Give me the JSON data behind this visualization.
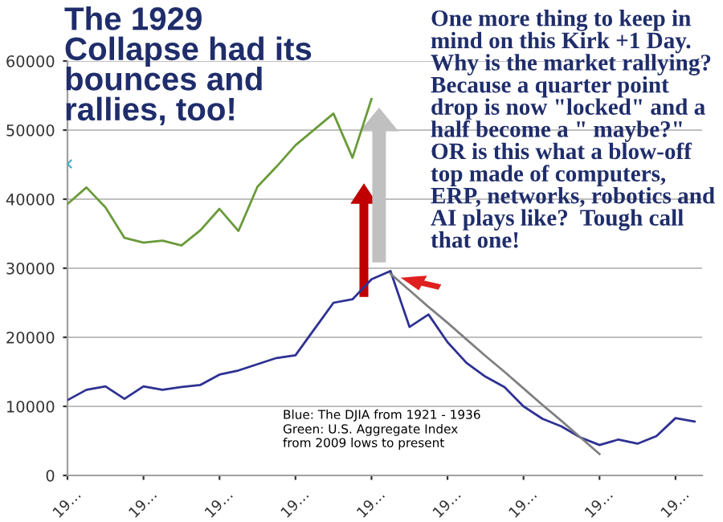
{
  "chart_data": {
    "type": "line",
    "title": "The 1929 Collapse had its bounces and rallies, too!",
    "annotations": [
      "One more thing to keep in mind on this Kirk +1 Day.  Why is the market rallying?  Because a quarter point drop is now \"locked\" and a half become a \" maybe?\"  OR is this what a blow-off top made of computers, ERP, networks, robotics and AI plays like?  Tough call that one!",
      "Blue: The DJIA from 1921 - 1936",
      "Green: U.S. Aggregate Index from 2009 lows to present"
    ],
    "categories": [
      "19…",
      null,
      null,
      null,
      "19…",
      null,
      null,
      null,
      "19…",
      null,
      null,
      null,
      "19…",
      null,
      null,
      null,
      "19…",
      null,
      null,
      null,
      "19…",
      null,
      null,
      null,
      "19…",
      null,
      null,
      null,
      "19…",
      null,
      null,
      null,
      "19…",
      null
    ],
    "series": [
      {
        "color": "#2e3192",
        "values": [
          10900,
          12400,
          12900,
          11100,
          12900,
          12400,
          12800,
          13100,
          14600,
          15200,
          16100,
          17000,
          17400,
          21200,
          25000,
          25500,
          28400,
          29600,
          21500,
          23300,
          19300,
          16300,
          14300,
          12800,
          10000,
          8200,
          7100,
          5500,
          4400,
          5200,
          4600,
          5700,
          8300,
          7800
        ]
      },
      {
        "color": "#6a9a3a",
        "values": [
          39300,
          41700,
          38800,
          34400,
          33700,
          34000,
          33300,
          35500,
          38600,
          35400,
          41800,
          44700,
          47800,
          50100,
          52400,
          46000,
          54500,
          null,
          null,
          null,
          null,
          null,
          null,
          null,
          null,
          null,
          null,
          null,
          null,
          null,
          null,
          null,
          null,
          null
        ]
      },
      {
        "color": "#808080",
        "values": [
          null,
          null,
          null,
          null,
          null,
          null,
          null,
          null,
          null,
          null,
          null,
          null,
          null,
          null,
          null,
          null,
          null,
          29200,
          26800,
          24400,
          22100,
          19700,
          17300,
          15000,
          12600,
          10200,
          7900,
          5500,
          3100,
          null,
          null,
          null,
          null,
          null
        ]
      },
      {
        "type": "scatter",
        "marker": "cross",
        "color": "#4bacc6",
        "values": [
          45100,
          null,
          null,
          null,
          null,
          null,
          null,
          null,
          null,
          null,
          null,
          null,
          null,
          null,
          null,
          null,
          null,
          null,
          null,
          null,
          null,
          null,
          null,
          null,
          null,
          null,
          null,
          null,
          null,
          null,
          null,
          null,
          null,
          null
        ]
      }
    ],
    "ylim": [
      0,
      60000
    ],
    "yticks": [
      0,
      10000,
      20000,
      30000,
      40000,
      50000,
      60000
    ],
    "grid": "y"
  }
}
